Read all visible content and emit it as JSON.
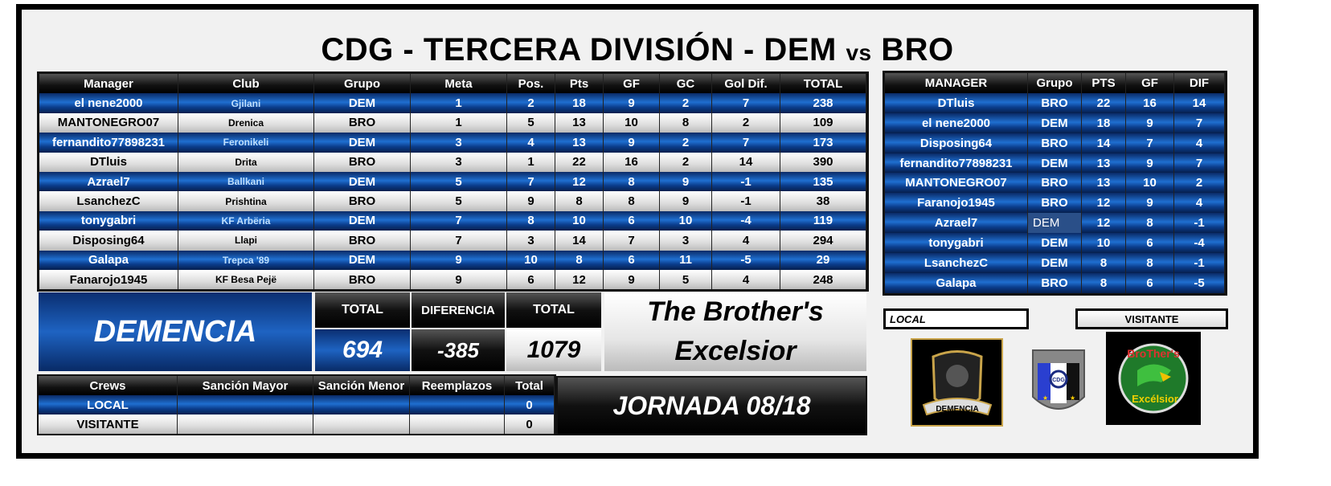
{
  "title": {
    "main": "CDG - TERCERA DIVISIÓN - DEM ",
    "vs": "vs",
    "tail": " BRO"
  },
  "main_table": {
    "headers": [
      "Manager",
      "Club",
      "Grupo",
      "Meta",
      "Pos.",
      "Pts",
      "GF",
      "GC",
      "Gol Dif.",
      "TOTAL"
    ],
    "rows": [
      [
        "el nene2000",
        "Gjilani",
        "DEM",
        "1",
        "2",
        "18",
        "9",
        "2",
        "7",
        "238"
      ],
      [
        "MANTONEGRO07",
        "Drenica",
        "BRO",
        "1",
        "5",
        "13",
        "10",
        "8",
        "2",
        "109"
      ],
      [
        "fernandito77898231",
        "Feronikeli",
        "DEM",
        "3",
        "4",
        "13",
        "9",
        "2",
        "7",
        "173"
      ],
      [
        "DTluis",
        "Drita",
        "BRO",
        "3",
        "1",
        "22",
        "16",
        "2",
        "14",
        "390"
      ],
      [
        "Azrael7",
        "Ballkani",
        "DEM",
        "5",
        "7",
        "12",
        "8",
        "9",
        "-1",
        "135"
      ],
      [
        "LsanchezC",
        "Prishtina",
        "BRO",
        "5",
        "9",
        "8",
        "8",
        "9",
        "-1",
        "38"
      ],
      [
        "tonygabri",
        "KF Arbëria",
        "DEM",
        "7",
        "8",
        "10",
        "6",
        "10",
        "-4",
        "119"
      ],
      [
        "Disposing64",
        "Llapi",
        "BRO",
        "7",
        "3",
        "14",
        "7",
        "3",
        "4",
        "294"
      ],
      [
        "Galapa",
        "Trepca '89",
        "DEM",
        "9",
        "10",
        "8",
        "6",
        "11",
        "-5",
        "29"
      ],
      [
        "Fanarojo1945",
        "KF Besa Pejë",
        "BRO",
        "9",
        "6",
        "12",
        "9",
        "5",
        "4",
        "248"
      ]
    ]
  },
  "summary": {
    "local_team": "DEMENCIA",
    "total_label_1": "TOTAL",
    "local_total": "694",
    "diff_label": "DIFERENCIA",
    "difference": "-385",
    "total_label_2": "TOTAL",
    "visitor_total": "1079",
    "visitor_team_line1": "The Brother's",
    "visitor_team_line2": "Excelsior",
    "jornada": "JORNADA 08/18"
  },
  "crews": {
    "headers": [
      "Crews",
      "Sanción Mayor",
      "Sanción Menor",
      "Reemplazos",
      "Total"
    ],
    "rows": [
      [
        "LOCAL",
        "",
        "",
        "",
        "0"
      ],
      [
        "VISITANTE",
        "",
        "",
        "",
        "0"
      ]
    ]
  },
  "ranking": {
    "headers": [
      "MANAGER",
      "Grupo",
      "PTS",
      "GF",
      "DIF"
    ],
    "rows": [
      [
        "DTluis",
        "BRO",
        "22",
        "16",
        "14"
      ],
      [
        "el nene2000",
        "DEM",
        "18",
        "9",
        "7"
      ],
      [
        "Disposing64",
        "BRO",
        "14",
        "7",
        "4"
      ],
      [
        "fernandito77898231",
        "DEM",
        "13",
        "9",
        "7"
      ],
      [
        "MANTONEGRO07",
        "BRO",
        "13",
        "10",
        "2"
      ],
      [
        "Faranojo1945",
        "BRO",
        "12",
        "9",
        "4"
      ],
      [
        "Azrael7",
        "DEM",
        "12",
        "8",
        "-1"
      ],
      [
        "tonygabri",
        "DEM",
        "10",
        "6",
        "-4"
      ],
      [
        "LsanchezC",
        "DEM",
        "8",
        "8",
        "-1"
      ],
      [
        "Galapa",
        "BRO",
        "8",
        "6",
        "-5"
      ]
    ]
  },
  "labels": {
    "local": "LOCAL",
    "visitante": "VISITANTE"
  },
  "logos": {
    "local": "DEMENCIA",
    "league": "CDG",
    "visitor": "BroTher's Excélsior"
  },
  "colors": {
    "accent_blue": "#1e63c2",
    "dark": "#111111",
    "light": "#e6e6e6"
  }
}
